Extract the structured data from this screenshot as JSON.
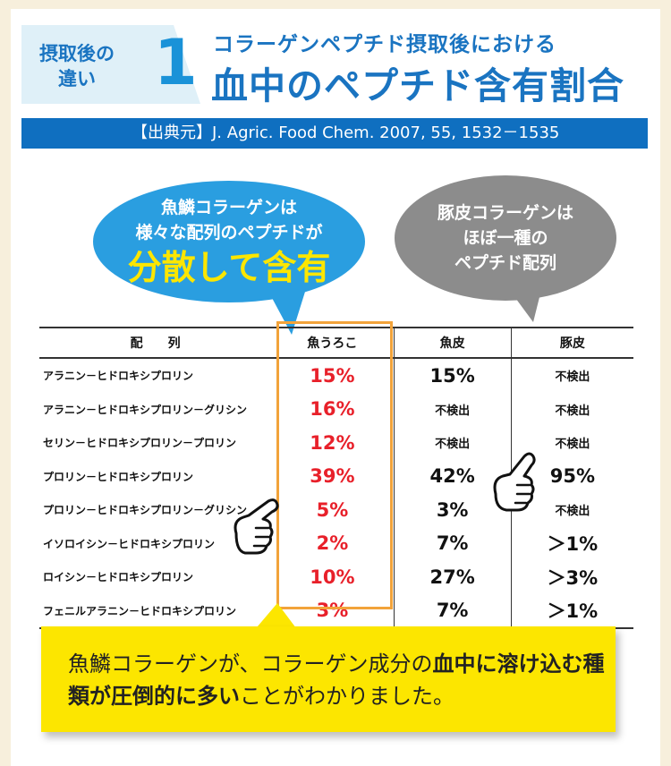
{
  "header": {
    "badge_line1": "摂取後の",
    "badge_line2": "違い",
    "badge_number": "1",
    "subtitle": "コラーゲンペプチド摂取後における",
    "title": "血中のペプチド含有割合"
  },
  "source": "【出典元】J. Agric. Food Chem. 2007, 55, 1532－1535",
  "bubble_fish": {
    "line1": "魚鱗コラーゲンは",
    "line2": "様々な配列のペプチドが",
    "emphasis": "分散して含有"
  },
  "bubble_pig": {
    "line1": "豚皮コラーゲンは",
    "line2": "ほぼ一種の",
    "line3": "ペプチド配列"
  },
  "table": {
    "headers": [
      "配　　列",
      "魚うろこ",
      "魚皮",
      "豚皮"
    ],
    "rows": [
      {
        "name": "アラニン－ヒドロキシプロリン",
        "fish_scale": "15%",
        "fish_skin": "15%",
        "pig_skin": "不検出"
      },
      {
        "name": "アラニン－ヒドロキシプロリン－グリシン",
        "fish_scale": "16%",
        "fish_skin": "不検出",
        "pig_skin": "不検出"
      },
      {
        "name": "セリン－ヒドロキシプロリン－プロリン",
        "fish_scale": "12%",
        "fish_skin": "不検出",
        "pig_skin": "不検出"
      },
      {
        "name": "プロリン－ヒドロキシプロリン",
        "fish_scale": "39%",
        "fish_skin": "42%",
        "pig_skin": "95%"
      },
      {
        "name": "プロリン－ヒドロキシプロリン－グリシン",
        "fish_scale": "5%",
        "fish_skin": "3%",
        "pig_skin": "不検出"
      },
      {
        "name": "イソロイシン－ヒドロキシプロリン",
        "fish_scale": "2%",
        "fish_skin": "7%",
        "pig_skin": "＞1%"
      },
      {
        "name": "ロイシン－ヒドロキシプロリン",
        "fish_scale": "10%",
        "fish_skin": "27%",
        "pig_skin": "＞3%"
      },
      {
        "name": "フェニルアラニン－ヒドロキシプロリン",
        "fish_scale": "3%",
        "fish_skin": "7%",
        "pig_skin": "＞1%"
      }
    ]
  },
  "conclusion": {
    "part1": "魚鱗コラーゲンが、コラーゲン成分の",
    "part2_bold": "血中に溶け込む種類が圧倒的に多い",
    "part3": "ことがわかりました。"
  },
  "colors": {
    "brand_blue": "#1a74c1",
    "accent_red": "#e8202a",
    "highlight_orange": "#f2a33a",
    "yellow": "#fce600",
    "bubble_blue": "#2a9ee0",
    "bubble_gray": "#8c8c8c"
  }
}
